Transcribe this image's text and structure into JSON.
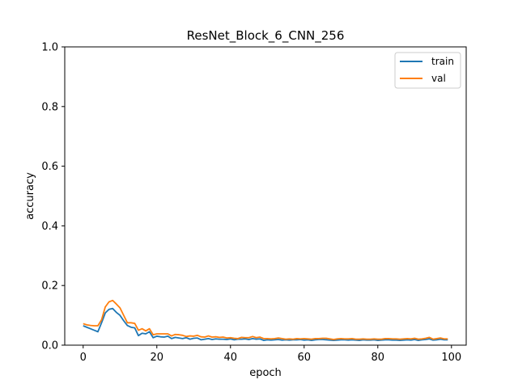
{
  "chart_data": {
    "type": "line",
    "title": "ResNet_Block_6_CNN_256",
    "xlabel": "epoch",
    "ylabel": "accuracy",
    "xlim": [
      -5,
      104
    ],
    "ylim": [
      0,
      1.0
    ],
    "xticks": [
      0,
      20,
      40,
      60,
      80,
      100
    ],
    "yticks": [
      0.0,
      0.2,
      0.4,
      0.6,
      0.8,
      1.0
    ],
    "xtick_labels": [
      "0",
      "20",
      "40",
      "60",
      "80",
      "100"
    ],
    "ytick_labels": [
      "0.0",
      "0.2",
      "0.4",
      "0.6",
      "0.8",
      "1.0"
    ],
    "grid": false,
    "legend_position": "top-right",
    "x": [
      0,
      1,
      2,
      3,
      4,
      5,
      6,
      7,
      8,
      9,
      10,
      11,
      12,
      13,
      14,
      15,
      16,
      17,
      18,
      19,
      20,
      21,
      22,
      23,
      24,
      25,
      26,
      27,
      28,
      29,
      30,
      31,
      32,
      33,
      34,
      35,
      36,
      37,
      38,
      39,
      40,
      41,
      42,
      43,
      44,
      45,
      46,
      47,
      48,
      49,
      50,
      51,
      52,
      53,
      54,
      55,
      56,
      57,
      58,
      59,
      60,
      61,
      62,
      63,
      64,
      65,
      66,
      67,
      68,
      69,
      70,
      71,
      72,
      73,
      74,
      75,
      76,
      77,
      78,
      79,
      80,
      81,
      82,
      83,
      84,
      85,
      86,
      87,
      88,
      89,
      90,
      91,
      92,
      93,
      94,
      95,
      96,
      97,
      98,
      99
    ],
    "series": [
      {
        "name": "train",
        "color": "#1f77b4",
        "values": [
          0.065,
          0.06,
          0.055,
          0.05,
          0.045,
          0.075,
          0.108,
          0.12,
          0.123,
          0.11,
          0.1,
          0.082,
          0.066,
          0.06,
          0.058,
          0.032,
          0.04,
          0.038,
          0.045,
          0.025,
          0.03,
          0.028,
          0.027,
          0.03,
          0.022,
          0.026,
          0.024,
          0.022,
          0.025,
          0.02,
          0.023,
          0.024,
          0.018,
          0.02,
          0.022,
          0.019,
          0.021,
          0.02,
          0.02,
          0.019,
          0.021,
          0.018,
          0.02,
          0.02,
          0.021,
          0.019,
          0.022,
          0.02,
          0.021,
          0.016,
          0.018,
          0.017,
          0.018,
          0.019,
          0.017,
          0.018,
          0.017,
          0.018,
          0.018,
          0.019,
          0.017,
          0.018,
          0.016,
          0.018,
          0.019,
          0.019,
          0.018,
          0.017,
          0.016,
          0.017,
          0.018,
          0.018,
          0.017,
          0.018,
          0.017,
          0.016,
          0.018,
          0.017,
          0.017,
          0.018,
          0.016,
          0.017,
          0.018,
          0.018,
          0.017,
          0.017,
          0.016,
          0.017,
          0.018,
          0.017,
          0.019,
          0.016,
          0.018,
          0.019,
          0.021,
          0.017,
          0.018,
          0.02,
          0.018,
          0.018
        ]
      },
      {
        "name": "val",
        "color": "#ff7f0e",
        "values": [
          0.072,
          0.068,
          0.066,
          0.065,
          0.065,
          0.085,
          0.128,
          0.145,
          0.15,
          0.138,
          0.125,
          0.1,
          0.075,
          0.075,
          0.073,
          0.05,
          0.055,
          0.048,
          0.055,
          0.035,
          0.038,
          0.038,
          0.038,
          0.038,
          0.031,
          0.036,
          0.035,
          0.033,
          0.029,
          0.031,
          0.03,
          0.033,
          0.028,
          0.027,
          0.031,
          0.027,
          0.028,
          0.026,
          0.027,
          0.024,
          0.025,
          0.023,
          0.022,
          0.026,
          0.025,
          0.025,
          0.029,
          0.025,
          0.027,
          0.022,
          0.022,
          0.021,
          0.022,
          0.024,
          0.022,
          0.02,
          0.021,
          0.02,
          0.022,
          0.021,
          0.022,
          0.021,
          0.02,
          0.022,
          0.022,
          0.023,
          0.023,
          0.021,
          0.019,
          0.021,
          0.022,
          0.021,
          0.021,
          0.022,
          0.02,
          0.02,
          0.021,
          0.02,
          0.02,
          0.021,
          0.02,
          0.02,
          0.022,
          0.022,
          0.021,
          0.021,
          0.02,
          0.021,
          0.022,
          0.021,
          0.023,
          0.02,
          0.021,
          0.023,
          0.026,
          0.02,
          0.022,
          0.024,
          0.021,
          0.021
        ]
      }
    ]
  }
}
